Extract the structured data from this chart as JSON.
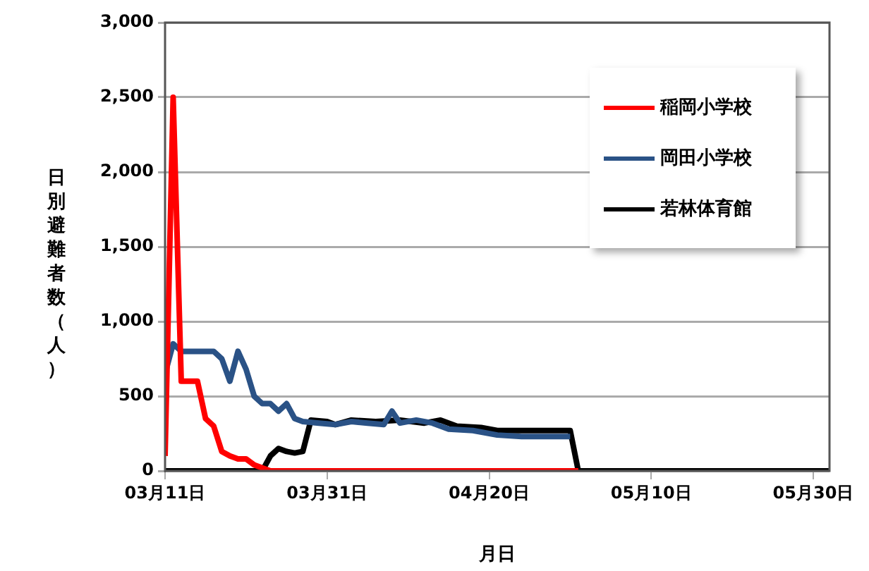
{
  "chart_data": {
    "type": "line",
    "xlabel": "月日",
    "ylabel": "日別避難者数（人）",
    "xlim": [
      "--03-11",
      "--06-01"
    ],
    "xticks": [
      {
        "value": "--03-11",
        "label": "03月11日"
      },
      {
        "value": "--03-31",
        "label": "03月31日"
      },
      {
        "value": "--04-20",
        "label": "04月20日"
      },
      {
        "value": "--05-10",
        "label": "05月10日"
      },
      {
        "value": "--05-30",
        "label": "05月30日"
      }
    ],
    "ylim": [
      0,
      3000
    ],
    "yticks": [
      0,
      500,
      {
        "value": 1000,
        "label": "1,000"
      },
      {
        "value": 1500,
        "label": "1,500"
      },
      {
        "value": 2000,
        "label": "2,000"
      },
      {
        "value": 2500,
        "label": "2,500"
      },
      {
        "value": 3000,
        "label": "3,000"
      }
    ],
    "grid": "y",
    "legend": "top right",
    "marker": "none",
    "line_style": "solid",
    "series": [
      {
        "name": "稲岡小学校",
        "color": "#ff0000",
        "x": [
          "--03-11",
          "--03-12",
          "--03-13",
          "--03-14",
          "--03-15",
          "--03-16",
          "--03-17",
          "--03-18",
          "--03-19",
          "--03-20",
          "--03-21",
          "--03-22",
          "--03-23",
          "--03-24",
          "--05-01"
        ],
        "values": [
          100,
          2500,
          600,
          600,
          600,
          350,
          300,
          130,
          100,
          80,
          80,
          40,
          20,
          0,
          0
        ]
      },
      {
        "name": "岡田小学校",
        "color": "#2a5286",
        "x": [
          "--03-11",
          "--03-12",
          "--03-13",
          "--03-14",
          "--03-15",
          "--03-16",
          "--03-17",
          "--03-18",
          "--03-19",
          "--03-20",
          "--03-21",
          "--03-22",
          "--03-23",
          "--03-24",
          "--03-25",
          "--03-26",
          "--03-27",
          "--03-28",
          "--03-30",
          "--04-01",
          "--04-03",
          "--04-05",
          "--04-07",
          "--04-08",
          "--04-09",
          "--04-11",
          "--04-13",
          "--04-15",
          "--04-18",
          "--04-21",
          "--04-24",
          "--04-30"
        ],
        "values": [
          650,
          850,
          800,
          800,
          800,
          800,
          800,
          750,
          600,
          800,
          680,
          500,
          450,
          450,
          400,
          450,
          350,
          330,
          320,
          310,
          330,
          320,
          310,
          400,
          320,
          340,
          320,
          280,
          270,
          240,
          230,
          230
        ]
      },
      {
        "name": "若林体育館",
        "color": "#000000",
        "x": [
          "--03-11",
          "--03-23",
          "--03-24",
          "--03-25",
          "--03-26",
          "--03-27",
          "--03-28",
          "--03-29",
          "--03-31",
          "--04-01",
          "--04-03",
          "--04-06",
          "--04-09",
          "--04-12",
          "--04-14",
          "--04-16",
          "--04-19",
          "--04-21",
          "--04-30",
          "--05-01",
          "--06-01"
        ],
        "values": [
          0,
          0,
          100,
          150,
          130,
          120,
          130,
          340,
          330,
          310,
          340,
          330,
          340,
          320,
          340,
          300,
          290,
          270,
          270,
          0,
          0
        ]
      }
    ]
  }
}
